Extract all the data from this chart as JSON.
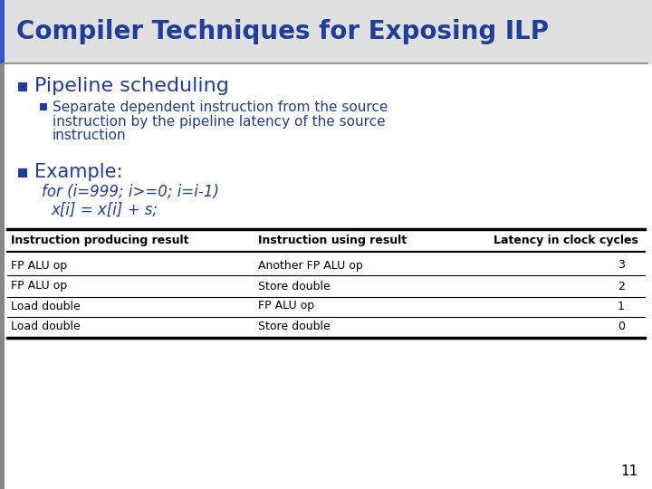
{
  "title": "Compiler Techniques for Exposing ILP",
  "title_color": "#1F3D99",
  "bg_color": "#FFFFFF",
  "bullet1": "Pipeline scheduling",
  "bullet1_color": "#1F3D99",
  "bullet2_line1": "Separate dependent instruction from the source",
  "bullet2_line2": "instruction by the pipeline latency of the source",
  "bullet2_line3": "instruction",
  "bullet2_color": "#1F3D99",
  "bullet3": "Example:",
  "bullet3_color": "#1F3D99",
  "code_line1": "for (i=999; i>=0; i=i-1)",
  "code_line2": "x[i] = x[i] + s;",
  "code_color": "#1F3D99",
  "table_headers": [
    "Instruction producing result",
    "Instruction using result",
    "Latency in clock cycles"
  ],
  "table_rows": [
    [
      "FP ALU op",
      "Another FP ALU op",
      "3"
    ],
    [
      "FP ALU op",
      "Store double",
      "2"
    ],
    [
      "Load double",
      "FP ALU op",
      "1"
    ],
    [
      "Load double",
      "Store double",
      "0"
    ]
  ],
  "table_header_color": "#000000",
  "table_text_color": "#000000",
  "page_number": "11",
  "left_bar_color": "#3355CC",
  "bullet_square_color": "#1F3D99",
  "title_underline_color": "#888888",
  "left_stripe_color": "#888888"
}
